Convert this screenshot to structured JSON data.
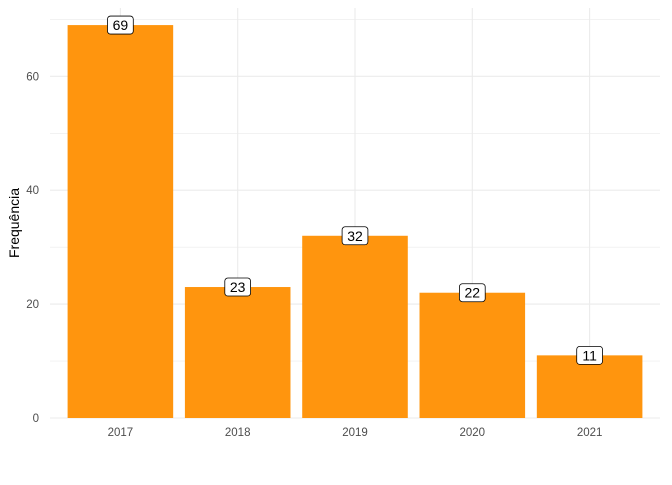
{
  "chart_data": {
    "type": "bar",
    "title": "",
    "xlabel": "",
    "ylabel": "Frequência",
    "categories": [
      "2017",
      "2018",
      "2019",
      "2020",
      "2021"
    ],
    "values": [
      69,
      23,
      32,
      22,
      11
    ],
    "data_labels": [
      "69",
      "23",
      "32",
      "22",
      "11"
    ],
    "ylim": [
      0,
      72
    ],
    "y_ticks": [
      0,
      20,
      40,
      60
    ],
    "y_tick_labels": [
      "0",
      "20",
      "40",
      "60"
    ],
    "y_minor_ticks": [
      10,
      30,
      50,
      70
    ],
    "grid": true,
    "legend": "none",
    "colors": {
      "bar": "#FF950E",
      "grid": "#EBEBEB",
      "text": "#4D4D4D",
      "label_border": "#000000",
      "label_background": "#FFFFFF"
    }
  }
}
